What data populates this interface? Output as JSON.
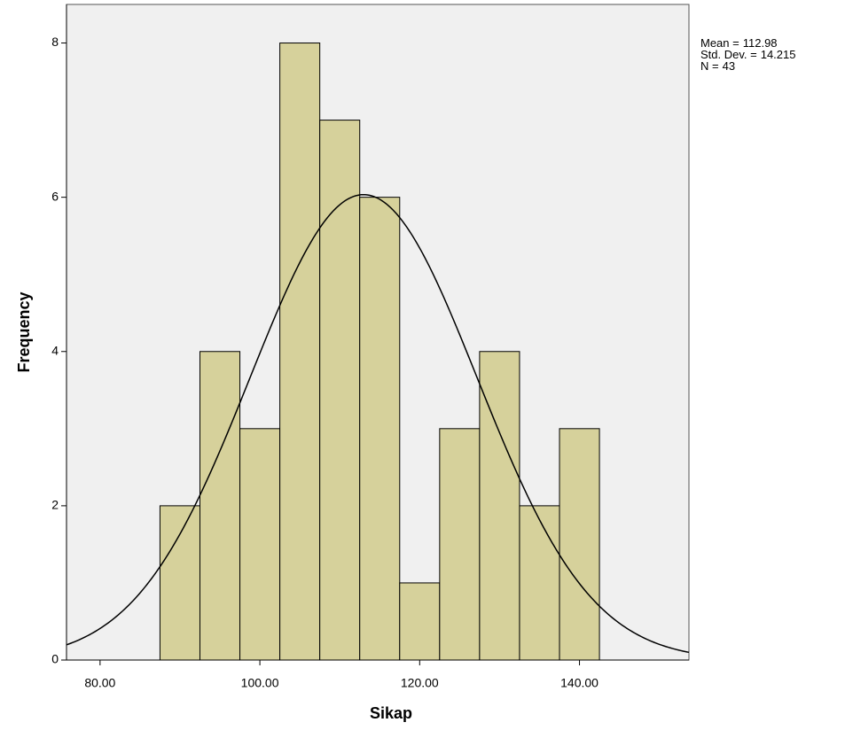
{
  "chart_data": {
    "type": "histogram",
    "x_label": "Sikap",
    "y_label": "Frequency",
    "bins": [
      87.5,
      92.5,
      97.5,
      102.5,
      107.5,
      112.5,
      117.5,
      122.5,
      127.5,
      132.5,
      137.5,
      142.5
    ],
    "values": [
      2,
      4,
      3,
      8,
      7,
      6,
      1,
      3,
      4,
      2,
      3
    ],
    "color": "#d6d19b",
    "xlim": [
      75.8,
      153.7
    ],
    "ylim": [
      0,
      8.5
    ],
    "xticks": [
      {
        "value": 80,
        "label": "80.00"
      },
      {
        "value": 100,
        "label": "100.00"
      },
      {
        "value": 120,
        "label": "120.00"
      },
      {
        "value": 140,
        "label": "140.00"
      }
    ],
    "yticks": [
      0,
      2,
      4,
      6,
      8
    ],
    "stats": [
      {
        "label": "Mean =",
        "value": 112.98
      },
      {
        "label": "Std. Dev. =",
        "value": 14.215
      },
      {
        "label": "N =",
        "value": 43
      }
    ]
  }
}
